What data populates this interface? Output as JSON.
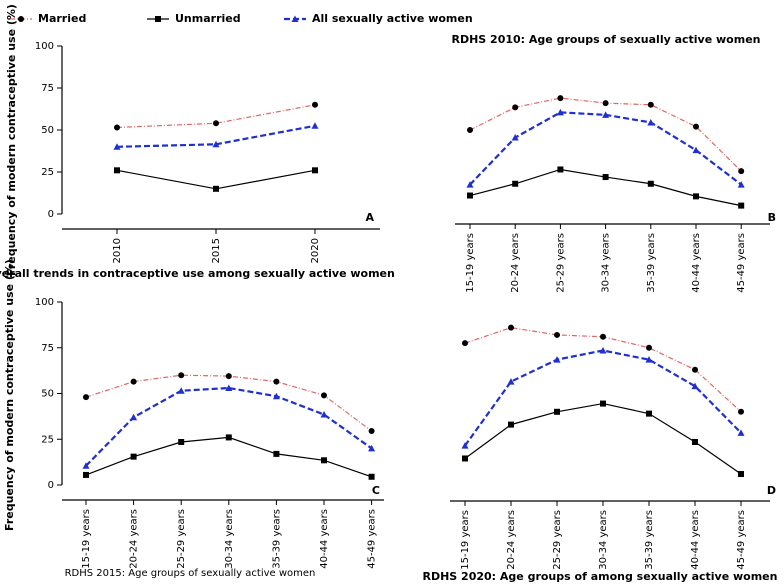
{
  "chart_data": [
    {
      "type": "line",
      "categories": [
        "2010",
        "2015",
        "2020"
      ],
      "series": [
        {
          "name": "Married",
          "color": "#e06666",
          "line_style": "dashdot",
          "marker": "circle",
          "values": [
            51.5,
            54,
            65
          ]
        },
        {
          "name": "Unmarried",
          "color": "#000000",
          "line_style": "solid",
          "marker": "square",
          "values": [
            26,
            15,
            26
          ]
        },
        {
          "name": "All sexually active women",
          "color": "#1f2fd0",
          "line_style": "dashed",
          "marker": "triangle",
          "values": [
            40,
            41.5,
            52.5
          ]
        }
      ],
      "ylim": [
        0,
        100
      ],
      "yticks": [
        0,
        25,
        50,
        75,
        100
      ],
      "ylabel": "Frequency of modern contraceptive use (%)",
      "xlabel": "Overall trends in contraceptive use among sexually active women",
      "panel_label": "A"
    },
    {
      "type": "line",
      "categories": [
        "15-19 years",
        "20-24 years",
        "25-29 years",
        "30-34 years",
        "35-39 years",
        "40-44 years",
        "45-49 years"
      ],
      "series": [
        {
          "color": "#e06666",
          "line_style": "dashdot",
          "marker": "circle",
          "values": [
            50,
            63.5,
            69,
            66,
            65,
            52,
            25.5
          ]
        },
        {
          "color": "#000000",
          "line_style": "solid",
          "marker": "square",
          "values": [
            11,
            18,
            26.5,
            22,
            18,
            10.5,
            5
          ]
        },
        {
          "color": "#1f2fd0",
          "line_style": "dashed",
          "marker": "triangle",
          "values": [
            17.5,
            45.5,
            60.5,
            59,
            54.5,
            38,
            17.5
          ]
        }
      ],
      "ylim": [
        0,
        100
      ],
      "title": "RDHS 2010: Age groups of sexually active women",
      "panel_label": "B"
    },
    {
      "type": "line",
      "categories": [
        "15-19 years",
        "20-24 years",
        "25-29 years",
        "30-34 years",
        "35-39 years",
        "40-44 years",
        "45-49 years"
      ],
      "series": [
        {
          "color": "#e06666",
          "line_style": "dashdot",
          "marker": "circle",
          "values": [
            48,
            56.5,
            60,
            59.5,
            56.5,
            49,
            29.5
          ]
        },
        {
          "color": "#000000",
          "line_style": "solid",
          "marker": "square",
          "values": [
            5.5,
            15.5,
            23.5,
            26,
            17,
            13.5,
            4.5
          ]
        },
        {
          "color": "#1f2fd0",
          "line_style": "dashed",
          "marker": "triangle",
          "values": [
            10.5,
            37,
            51.5,
            53,
            48.5,
            38.5,
            20
          ]
        }
      ],
      "ylim": [
        0,
        100
      ],
      "yticks": [
        0,
        25,
        50,
        75,
        100
      ],
      "ylabel": "Frequency of modern contraceptive use (%)",
      "xlabel": "RDHS 2015: Age groups of sexually active women",
      "panel_label": "C"
    },
    {
      "type": "line",
      "categories": [
        "15-19 years",
        "20-24 years",
        "25-29 years",
        "30-34 years",
        "35-39 years",
        "40-44 years",
        "45-49 years"
      ],
      "series": [
        {
          "color": "#e06666",
          "line_style": "dashdot",
          "marker": "circle",
          "values": [
            77.5,
            86,
            82,
            81,
            75,
            63,
            40
          ]
        },
        {
          "color": "#000000",
          "line_style": "solid",
          "marker": "square",
          "values": [
            14.5,
            33,
            40,
            44.5,
            39,
            23.5,
            6
          ]
        },
        {
          "color": "#1f2fd0",
          "line_style": "dashed",
          "marker": "triangle",
          "values": [
            21.5,
            56.5,
            68.5,
            73.5,
            68.5,
            54,
            28.5
          ]
        }
      ],
      "ylim": [
        0,
        100
      ],
      "xlabel": "RDHS 2020: Age groups of among sexually active women",
      "panel_label": "D"
    }
  ]
}
